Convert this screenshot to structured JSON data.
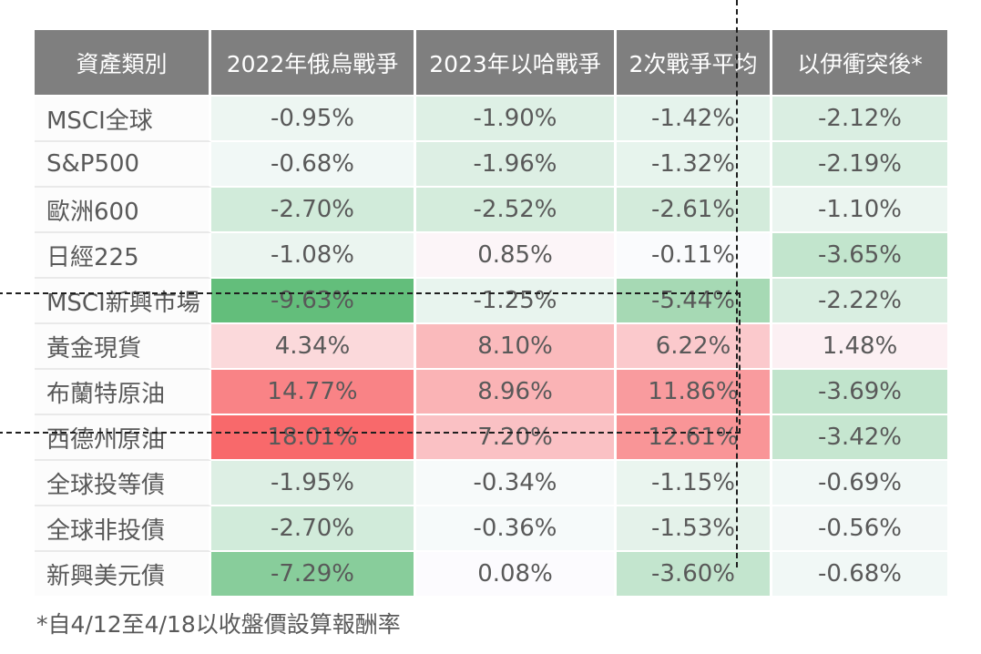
{
  "chart_data": {
    "type": "table",
    "columns": [
      "資產類別",
      "2022年俄烏戰爭",
      "2023年以哈戰爭",
      "2次戰爭平均",
      "以伊衝突後*"
    ],
    "rows": [
      {
        "asset": "MSCI全球",
        "values": [
          "-0.95%",
          "-1.90%",
          "-1.42%",
          "-2.12%"
        ]
      },
      {
        "asset": "S&P500",
        "values": [
          "-0.68%",
          "-1.96%",
          "-1.32%",
          "-2.19%"
        ]
      },
      {
        "asset": "歐洲600",
        "values": [
          "-2.70%",
          "-2.52%",
          "-2.61%",
          "-1.10%"
        ]
      },
      {
        "asset": "日經225",
        "values": [
          "-1.08%",
          "0.85%",
          "-0.11%",
          "-3.65%"
        ]
      },
      {
        "asset": "MSCI新興市場",
        "values": [
          "-9.63%",
          "-1.25%",
          "-5.44%",
          "-2.22%"
        ]
      },
      {
        "asset": "黃金現貨",
        "values": [
          "4.34%",
          "8.10%",
          "6.22%",
          "1.48%"
        ]
      },
      {
        "asset": "布蘭特原油",
        "values": [
          "14.77%",
          "8.96%",
          "11.86%",
          "-3.69%"
        ]
      },
      {
        "asset": "西德州原油",
        "values": [
          "18.01%",
          "7.20%",
          "12.61%",
          "-3.42%"
        ]
      },
      {
        "asset": "全球投等債",
        "values": [
          "-1.95%",
          "-0.34%",
          "-1.15%",
          "-0.69%"
        ]
      },
      {
        "asset": "全球非投債",
        "values": [
          "-2.70%",
          "-0.36%",
          "-1.53%",
          "-0.56%"
        ]
      },
      {
        "asset": "新興美元債",
        "values": [
          "-7.29%",
          "0.08%",
          "-3.60%",
          "-0.68%"
        ]
      }
    ],
    "highlight_box_rows": [
      5,
      6,
      7
    ],
    "dashed_separator_before_column": "以伊衝突後*",
    "color_scale": {
      "min_value": -9.63,
      "mid_value": 0,
      "max_value": 18.01,
      "min_color": "#63BE7B",
      "mid_color": "#FCFCFF",
      "max_color": "#F8696B"
    }
  },
  "footnote": "*自4/12至4/18以收盤價設算報酬率",
  "style_colors": {
    "header_bg": "#7F7F7F",
    "header_text": "#FFFFFF",
    "cell_text": "#595959",
    "dashed_line": "#1F1F1F"
  }
}
